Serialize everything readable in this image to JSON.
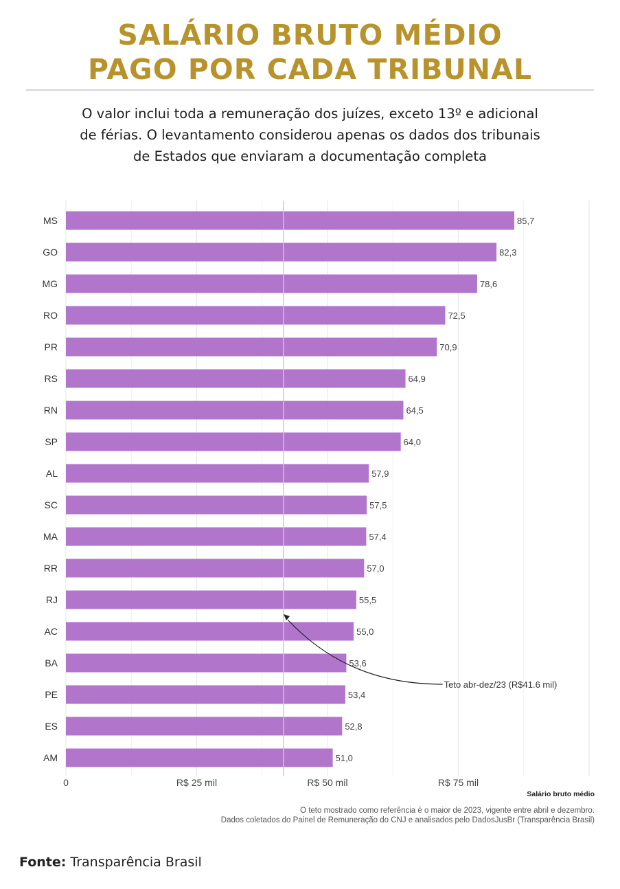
{
  "header": {
    "title_line1": "SALÁRIO BRUTO MÉDIO",
    "title_line2": "PAGO POR CADA TRIBUNAL",
    "subtitle_line1": "O valor inclui toda a remuneração dos juízes, exceto 13º e adicional",
    "subtitle_line2": "de férias. O levantamento considerou apenas os dados dos tribunais",
    "subtitle_line3": "de Estados que enviaram a documentação completa"
  },
  "chart_data": {
    "type": "bar",
    "orientation": "horizontal",
    "categories": [
      "MS",
      "GO",
      "MG",
      "RO",
      "PR",
      "RS",
      "RN",
      "SP",
      "AL",
      "SC",
      "MA",
      "RR",
      "RJ",
      "AC",
      "BA",
      "PE",
      "ES",
      "AM"
    ],
    "values": [
      85.7,
      82.3,
      78.6,
      72.5,
      70.9,
      64.9,
      64.5,
      64.0,
      57.9,
      57.5,
      57.4,
      57.0,
      55.5,
      55.0,
      53.6,
      53.4,
      52.8,
      51.0
    ],
    "value_labels": [
      "85,7",
      "82,3",
      "78,6",
      "72,5",
      "70,9",
      "64,9",
      "64,5",
      "64,0",
      "57,9",
      "57,5",
      "57,4",
      "57,0",
      "55,5",
      "55,0",
      "53,6",
      "53,4",
      "52,8",
      "51,0"
    ],
    "xticks": [
      {
        "value": 0,
        "label": "0"
      },
      {
        "value": 25,
        "label": "R$ 25 mil"
      },
      {
        "value": 50,
        "label": "R$ 50 mil"
      },
      {
        "value": 75,
        "label": "R$ 75 mil"
      }
    ],
    "xlim": [
      0,
      100
    ],
    "xlabel": "Salário bruto médio",
    "grid": true,
    "bar_color": "#b175cc",
    "reference_line": {
      "value": 41.6,
      "label": "Teto abr-dez/23 (R$41.6 mil)",
      "color": "#f0b8cc"
    }
  },
  "notes": {
    "line1": "O teto mostrado como referência é o maior de 2023, vigente entre abril e dezembro.",
    "line2": "Dados coletados do Painel de Remuneração do CNJ e analisados pelo DadosJusBr (Transparência Brasil)"
  },
  "footer": {
    "source_label": "Fonte:",
    "source_text": " Transparência Brasil"
  },
  "colors": {
    "title": "#b8922a"
  }
}
